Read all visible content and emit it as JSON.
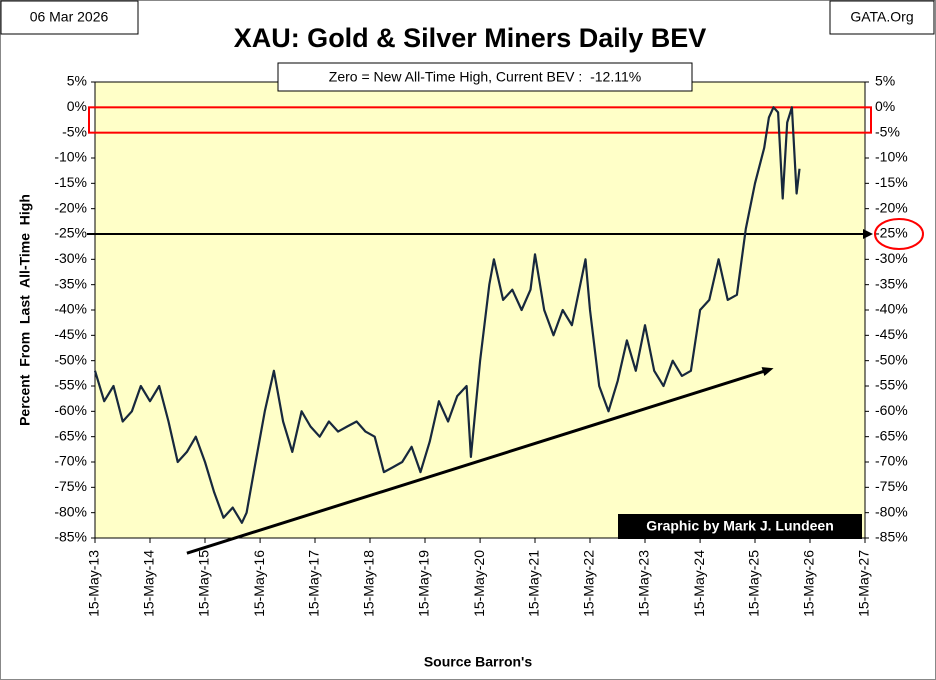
{
  "date_stamp": "06 Mar 2026",
  "source_site": "GATA.Org",
  "credit": "Graphic by Mark J. Lundeen",
  "chart_data": {
    "type": "line",
    "title": "XAU: Gold & Silver Miners Daily BEV",
    "subtitle": "Zero = New All-Time High, Current BEV :  -12.11%",
    "y_label": "Percent  From  Last  All-Time  High",
    "x_label": "Source Barron's",
    "plot_background": "#ffffc8",
    "grid": false,
    "x": [
      "2013-05-15",
      "2013-07-15",
      "2013-09-15",
      "2013-11-15",
      "2014-01-15",
      "2014-03-15",
      "2014-05-15",
      "2014-07-15",
      "2014-09-15",
      "2014-11-15",
      "2015-01-15",
      "2015-03-15",
      "2015-05-15",
      "2015-07-15",
      "2015-09-15",
      "2015-11-15",
      "2016-01-15",
      "2016-02-15",
      "2016-04-15",
      "2016-06-15",
      "2016-08-15",
      "2016-10-15",
      "2016-12-15",
      "2017-02-15",
      "2017-04-15",
      "2017-06-15",
      "2017-08-15",
      "2017-10-15",
      "2017-12-15",
      "2018-02-15",
      "2018-04-15",
      "2018-06-15",
      "2018-08-15",
      "2018-10-15",
      "2018-12-15",
      "2019-02-15",
      "2019-04-15",
      "2019-06-15",
      "2019-08-15",
      "2019-10-15",
      "2019-12-15",
      "2020-02-15",
      "2020-03-15",
      "2020-05-15",
      "2020-07-15",
      "2020-08-15",
      "2020-10-15",
      "2020-12-15",
      "2021-02-15",
      "2021-04-15",
      "2021-05-15",
      "2021-07-15",
      "2021-09-15",
      "2021-11-15",
      "2022-01-15",
      "2022-04-15",
      "2022-05-15",
      "2022-07-15",
      "2022-09-15",
      "2022-11-15",
      "2023-01-15",
      "2023-03-15",
      "2023-05-15",
      "2023-07-15",
      "2023-09-15",
      "2023-11-15",
      "2024-01-15",
      "2024-03-15",
      "2024-05-15",
      "2024-07-15",
      "2024-09-15",
      "2024-11-15",
      "2025-01-15",
      "2025-03-15",
      "2025-05-15",
      "2025-07-15",
      "2025-08-15",
      "2025-09-15",
      "2025-10-15",
      "2025-11-15",
      "2025-12-15",
      "2026-01-15",
      "2026-02-15",
      "2026-03-06"
    ],
    "series": [
      {
        "name": "XAU BEV",
        "color": "#17283d",
        "values": [
          -52,
          -58,
          -55,
          -62,
          -60,
          -55,
          -58,
          -55,
          -62,
          -70,
          -68,
          -65,
          -70,
          -76,
          -81,
          -79,
          -82,
          -80,
          -70,
          -60,
          -52,
          -62,
          -68,
          -60,
          -63,
          -65,
          -62,
          -64,
          -63,
          -62,
          -64,
          -65,
          -72,
          -71,
          -70,
          -67,
          -72,
          -66,
          -58,
          -62,
          -57,
          -55,
          -69,
          -50,
          -35,
          -30,
          -38,
          -36,
          -40,
          -36,
          -29,
          -40,
          -45,
          -40,
          -43,
          -30,
          -40,
          -55,
          -60,
          -54,
          -46,
          -52,
          -43,
          -52,
          -55,
          -50,
          -53,
          -52,
          -40,
          -38,
          -30,
          -38,
          -37,
          -24,
          -15,
          -8,
          -2,
          0,
          -1,
          -18,
          -3,
          0,
          -17,
          -12.11
        ]
      }
    ],
    "xlim": [
      "2013-05-15",
      "2027-05-15"
    ],
    "xticks": [
      {
        "value": "2013-05-15",
        "label": "15-May-13"
      },
      {
        "value": "2014-05-15",
        "label": "15-May-14"
      },
      {
        "value": "2015-05-15",
        "label": "15-May-15"
      },
      {
        "value": "2016-05-15",
        "label": "15-May-16"
      },
      {
        "value": "2017-05-15",
        "label": "15-May-17"
      },
      {
        "value": "2018-05-15",
        "label": "15-May-18"
      },
      {
        "value": "2019-05-15",
        "label": "15-May-19"
      },
      {
        "value": "2020-05-15",
        "label": "15-May-20"
      },
      {
        "value": "2021-05-15",
        "label": "15-May-21"
      },
      {
        "value": "2022-05-15",
        "label": "15-May-22"
      },
      {
        "value": "2023-05-15",
        "label": "15-May-23"
      },
      {
        "value": "2024-05-15",
        "label": "15-May-24"
      },
      {
        "value": "2025-05-15",
        "label": "15-May-25"
      },
      {
        "value": "2026-05-15",
        "label": "15-May-26"
      },
      {
        "value": "2027-05-15",
        "label": "15-May-27"
      }
    ],
    "ylim": [
      -85,
      5
    ],
    "yticks": [
      {
        "value": 5,
        "label": "5%"
      },
      {
        "value": 0,
        "label": "0%"
      },
      {
        "value": -5,
        "label": "-5%"
      },
      {
        "value": -10,
        "label": "-10%"
      },
      {
        "value": -15,
        "label": "-15%"
      },
      {
        "value": -20,
        "label": "-20%"
      },
      {
        "value": -25,
        "label": "-25%"
      },
      {
        "value": -30,
        "label": "-30%"
      },
      {
        "value": -35,
        "label": "-35%"
      },
      {
        "value": -40,
        "label": "-40%"
      },
      {
        "value": -45,
        "label": "-45%"
      },
      {
        "value": -50,
        "label": "-50%"
      },
      {
        "value": -55,
        "label": "-55%"
      },
      {
        "value": -60,
        "label": "-60%"
      },
      {
        "value": -65,
        "label": "-65%"
      },
      {
        "value": -70,
        "label": "-70%"
      },
      {
        "value": -75,
        "label": "-75%"
      },
      {
        "value": -80,
        "label": "-80%"
      },
      {
        "value": -85,
        "label": "-85%"
      }
    ],
    "highlight_band": {
      "from": 0,
      "to": -5,
      "color": "#ff0000"
    },
    "reference_line": {
      "value": -25,
      "color": "#000000",
      "circle_color": "#ff0000"
    },
    "trend_arrow": {
      "x": [
        "2015-01-15",
        "2025-09-15"
      ],
      "y": [
        -88,
        -51.5
      ],
      "color": "#000000"
    }
  }
}
